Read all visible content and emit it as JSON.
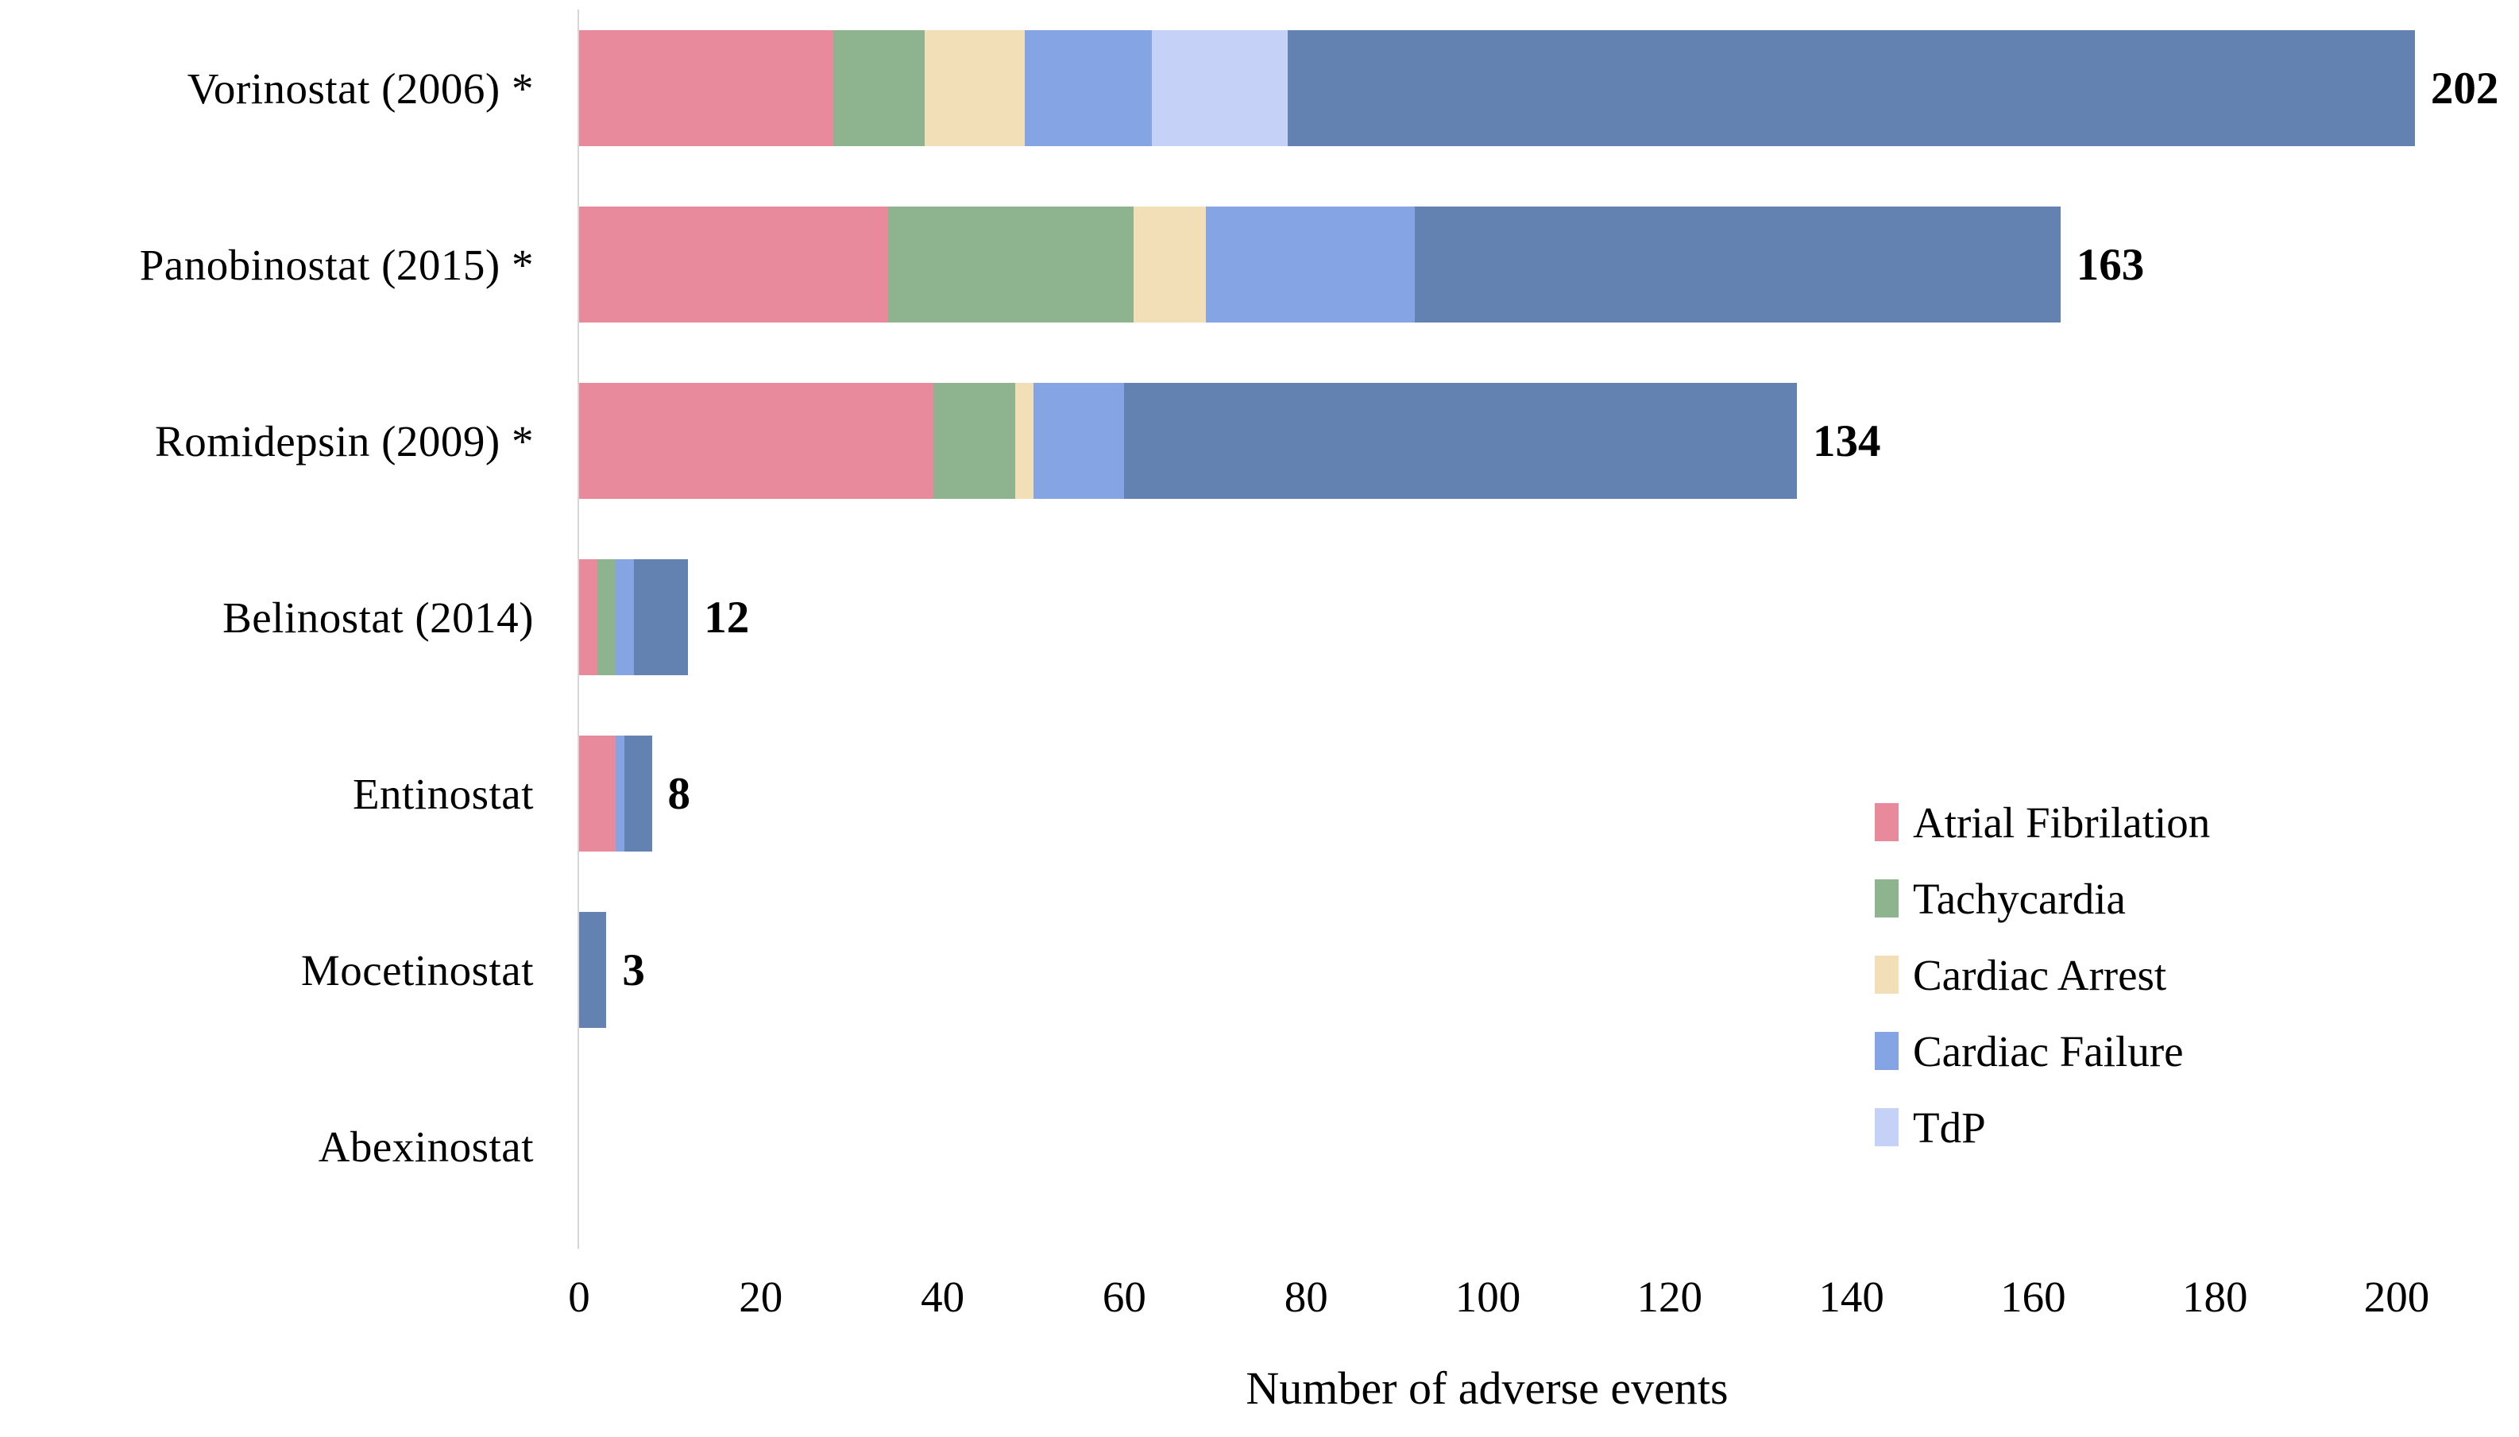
{
  "chart_data": {
    "type": "bar",
    "orientation": "horizontal",
    "title": "",
    "xlabel": "Number of adverse events",
    "ylabel": "",
    "xlim": [
      0,
      200
    ],
    "xticks": [
      0,
      20,
      40,
      60,
      80,
      100,
      120,
      140,
      160,
      180,
      200
    ],
    "grid": false,
    "legend_position": "lower-right-inside",
    "categories": [
      "Vorinostat (2006) *",
      "Panobinostat (2015) *",
      "Romidepsin (2009) *",
      "Belinostat (2014)",
      "Entinostat",
      "Mocetinostat",
      "Abexinostat"
    ],
    "totals": [
      202,
      163,
      134,
      12,
      8,
      3,
      0
    ],
    "total_labels": [
      "202",
      "163",
      "134",
      "12",
      "8",
      "3",
      ""
    ],
    "series": [
      {
        "name": "Atrial Fibrilation",
        "color": "#e8899c",
        "values": [
          28,
          34,
          39,
          2,
          4,
          0,
          0
        ]
      },
      {
        "name": "Tachycardia",
        "color": "#8db48e",
        "values": [
          10,
          27,
          9,
          2,
          0,
          0,
          0
        ]
      },
      {
        "name": "Cardiac Arrest",
        "color": "#f2dfb8",
        "values": [
          11,
          8,
          2,
          0,
          0,
          0,
          0
        ]
      },
      {
        "name": "Cardiac Failure",
        "color": "#84a4e4",
        "values": [
          14,
          23,
          10,
          2,
          1,
          0,
          0
        ]
      },
      {
        "name": "TdP",
        "color": "#c5d1f6",
        "values": [
          15,
          0,
          0,
          0,
          0,
          0,
          0
        ]
      },
      {
        "name": "",
        "color": "#6381b1",
        "values": [
          124,
          71,
          74,
          6,
          3,
          3,
          0
        ]
      }
    ],
    "legend_entries": [
      "Atrial Fibrilation",
      "Tachycardia",
      "Cardiac Arrest",
      "Cardiac Failure",
      "TdP"
    ]
  },
  "layout_colors": {
    "background": "#ffffff",
    "axis_line": "#d6d6d6",
    "text": "#000000"
  }
}
